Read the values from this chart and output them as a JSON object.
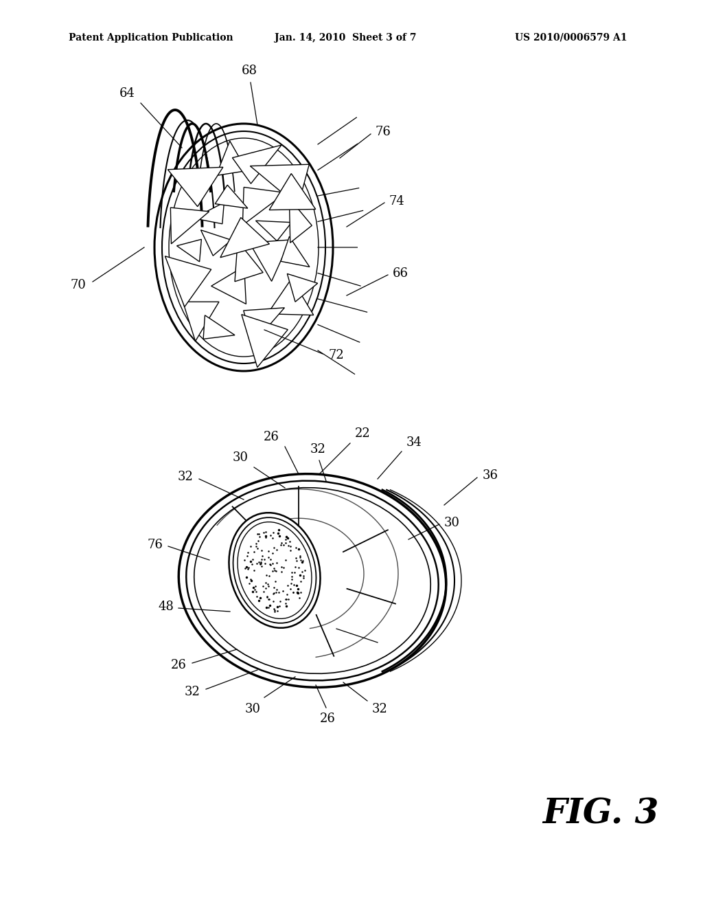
{
  "background_color": "#ffffff",
  "header_left": "Patent Application Publication",
  "header_mid": "Jan. 14, 2010  Sheet 3 of 7",
  "header_right": "US 2010/0006579 A1",
  "fig_label": "FIG. 3",
  "lw_ref": 0.9,
  "fs_label": 13
}
